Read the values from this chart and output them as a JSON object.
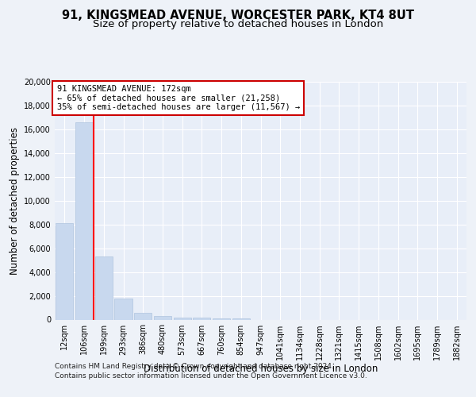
{
  "title_line1": "91, KINGSMEAD AVENUE, WORCESTER PARK, KT4 8UT",
  "title_line2": "Size of property relative to detached houses in London",
  "xlabel": "Distribution of detached houses by size in London",
  "ylabel": "Number of detached properties",
  "bar_color": "#c8d8ee",
  "bar_edge_color": "#b0c4de",
  "background_color": "#eef2f8",
  "plot_bg_color": "#e8eef8",
  "grid_color": "#ffffff",
  "categories": [
    "12sqm",
    "106sqm",
    "199sqm",
    "293sqm",
    "386sqm",
    "480sqm",
    "573sqm",
    "667sqm",
    "760sqm",
    "854sqm",
    "947sqm",
    "1041sqm",
    "1134sqm",
    "1228sqm",
    "1321sqm",
    "1415sqm",
    "1508sqm",
    "1602sqm",
    "1695sqm",
    "1789sqm",
    "1882sqm"
  ],
  "values": [
    8100,
    16600,
    5300,
    1800,
    600,
    330,
    170,
    140,
    120,
    100,
    0,
    0,
    0,
    0,
    0,
    0,
    0,
    0,
    0,
    0,
    0
  ],
  "ylim": [
    0,
    20000
  ],
  "yticks": [
    0,
    2000,
    4000,
    6000,
    8000,
    10000,
    12000,
    14000,
    16000,
    18000,
    20000
  ],
  "annotation_text": "91 KINGSMEAD AVENUE: 172sqm\n← 65% of detached houses are smaller (21,258)\n35% of semi-detached houses are larger (11,567) →",
  "annotation_box_color": "#ffffff",
  "annotation_box_edge": "#cc0000",
  "property_line_x": 1.5,
  "footer_line1": "Contains HM Land Registry data © Crown copyright and database right 2024.",
  "footer_line2": "Contains public sector information licensed under the Open Government Licence v3.0.",
  "title_fontsize": 10.5,
  "subtitle_fontsize": 9.5,
  "axis_label_fontsize": 8.5,
  "tick_fontsize": 7,
  "annotation_fontsize": 7.5,
  "footer_fontsize": 6.5
}
